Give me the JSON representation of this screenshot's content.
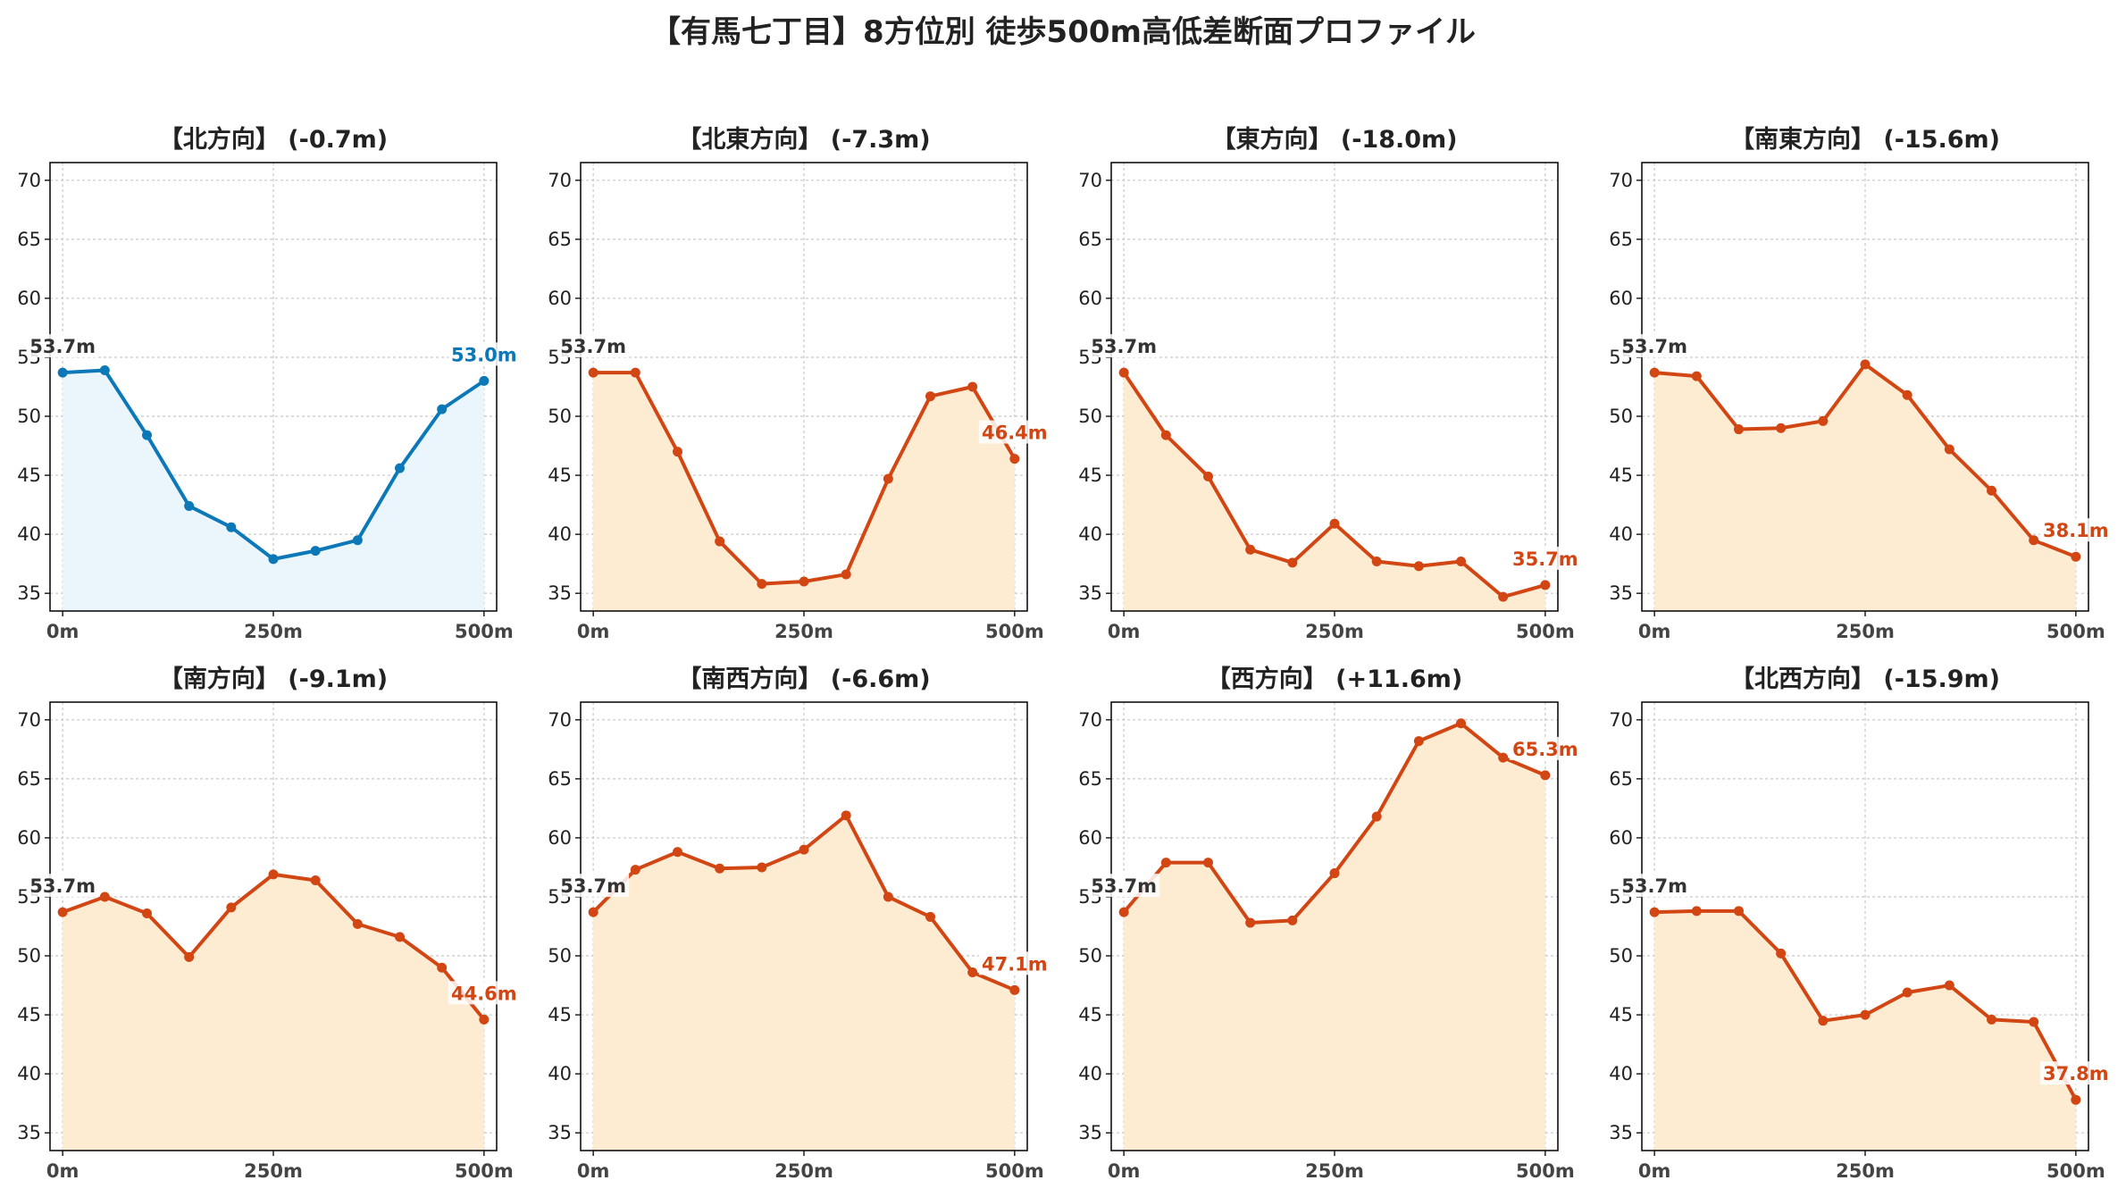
{
  "title": "【有馬七丁目】8方位別 徒歩500m高低差断面プロファイル",
  "colors": {
    "down_line": "#0c78b8",
    "down_fill": "#eaf6fc",
    "up_line": "#d24614",
    "up_fill": "#fdebd2",
    "grid": "#c8c8c8"
  },
  "chart_data": [
    {
      "type": "area",
      "title": "【北方向】 (-0.7m)",
      "style": "down",
      "x": [
        0,
        50,
        100,
        150,
        200,
        250,
        300,
        350,
        400,
        450,
        500
      ],
      "values": [
        53.7,
        53.9,
        48.4,
        42.4,
        40.6,
        37.9,
        38.6,
        39.5,
        45.6,
        50.6,
        53.0
      ],
      "start_label": "53.7m",
      "end_label": "53.0m",
      "xticks": [
        "0m",
        "250m",
        "500m"
      ],
      "yticks": [
        35,
        40,
        45,
        50,
        55,
        60,
        65,
        70
      ],
      "xlim": [
        -15,
        515
      ],
      "ylim": [
        33.5,
        71.5
      ],
      "grid": true
    },
    {
      "type": "area",
      "title": "【北東方向】 (-7.3m)",
      "style": "up",
      "x": [
        0,
        50,
        100,
        150,
        200,
        250,
        300,
        350,
        400,
        450,
        500
      ],
      "values": [
        53.7,
        53.7,
        47.0,
        39.4,
        35.8,
        36.0,
        36.6,
        44.7,
        51.7,
        52.5,
        46.4
      ],
      "start_label": "53.7m",
      "end_label": "46.4m",
      "xticks": [
        "0m",
        "250m",
        "500m"
      ],
      "yticks": [
        35,
        40,
        45,
        50,
        55,
        60,
        65,
        70
      ],
      "xlim": [
        -15,
        515
      ],
      "ylim": [
        33.5,
        71.5
      ],
      "grid": true
    },
    {
      "type": "area",
      "title": "【東方向】 (-18.0m)",
      "style": "up",
      "x": [
        0,
        50,
        100,
        150,
        200,
        250,
        300,
        350,
        400,
        450,
        500
      ],
      "values": [
        53.7,
        48.4,
        44.9,
        38.7,
        37.6,
        40.9,
        37.7,
        37.3,
        37.7,
        34.7,
        35.7
      ],
      "start_label": "53.7m",
      "end_label": "35.7m",
      "xticks": [
        "0m",
        "250m",
        "500m"
      ],
      "yticks": [
        35,
        40,
        45,
        50,
        55,
        60,
        65,
        70
      ],
      "xlim": [
        -15,
        515
      ],
      "ylim": [
        33.5,
        71.5
      ],
      "grid": true
    },
    {
      "type": "area",
      "title": "【南東方向】 (-15.6m)",
      "style": "up",
      "x": [
        0,
        50,
        100,
        150,
        200,
        250,
        300,
        350,
        400,
        450,
        500
      ],
      "values": [
        53.7,
        53.4,
        48.9,
        49.0,
        49.6,
        54.4,
        51.8,
        47.2,
        43.7,
        39.5,
        38.1
      ],
      "start_label": "53.7m",
      "end_label": "38.1m",
      "xticks": [
        "0m",
        "250m",
        "500m"
      ],
      "yticks": [
        35,
        40,
        45,
        50,
        55,
        60,
        65,
        70
      ],
      "xlim": [
        -15,
        515
      ],
      "ylim": [
        33.5,
        71.5
      ],
      "grid": true
    },
    {
      "type": "area",
      "title": "【南方向】 (-9.1m)",
      "style": "up",
      "x": [
        0,
        50,
        100,
        150,
        200,
        250,
        300,
        350,
        400,
        450,
        500
      ],
      "values": [
        53.7,
        55.0,
        53.6,
        49.9,
        54.1,
        56.9,
        56.4,
        52.7,
        51.6,
        49.0,
        44.6
      ],
      "start_label": "53.7m",
      "end_label": "44.6m",
      "xticks": [
        "0m",
        "250m",
        "500m"
      ],
      "yticks": [
        35,
        40,
        45,
        50,
        55,
        60,
        65,
        70
      ],
      "xlim": [
        -15,
        515
      ],
      "ylim": [
        33.5,
        71.5
      ],
      "grid": true
    },
    {
      "type": "area",
      "title": "【南西方向】 (-6.6m)",
      "style": "up",
      "x": [
        0,
        50,
        100,
        150,
        200,
        250,
        300,
        350,
        400,
        450,
        500
      ],
      "values": [
        53.7,
        57.3,
        58.8,
        57.4,
        57.5,
        59.0,
        61.9,
        55.0,
        53.3,
        48.6,
        47.1
      ],
      "start_label": "53.7m",
      "end_label": "47.1m",
      "xticks": [
        "0m",
        "250m",
        "500m"
      ],
      "yticks": [
        35,
        40,
        45,
        50,
        55,
        60,
        65,
        70
      ],
      "xlim": [
        -15,
        515
      ],
      "ylim": [
        33.5,
        71.5
      ],
      "grid": true
    },
    {
      "type": "area",
      "title": "【西方向】 (+11.6m)",
      "style": "up",
      "x": [
        0,
        50,
        100,
        150,
        200,
        250,
        300,
        350,
        400,
        450,
        500
      ],
      "values": [
        53.7,
        57.9,
        57.9,
        52.8,
        53.0,
        57.0,
        61.8,
        68.2,
        69.7,
        66.8,
        65.3
      ],
      "start_label": "53.7m",
      "end_label": "65.3m",
      "xticks": [
        "0m",
        "250m",
        "500m"
      ],
      "yticks": [
        35,
        40,
        45,
        50,
        55,
        60,
        65,
        70
      ],
      "xlim": [
        -15,
        515
      ],
      "ylim": [
        33.5,
        71.5
      ],
      "grid": true
    },
    {
      "type": "area",
      "title": "【北西方向】 (-15.9m)",
      "style": "up",
      "x": [
        0,
        50,
        100,
        150,
        200,
        250,
        300,
        350,
        400,
        450,
        500
      ],
      "values": [
        53.7,
        53.8,
        53.8,
        50.2,
        44.5,
        45.0,
        46.9,
        47.5,
        44.6,
        44.4,
        37.8
      ],
      "start_label": "53.7m",
      "end_label": "37.8m",
      "xticks": [
        "0m",
        "250m",
        "500m"
      ],
      "yticks": [
        35,
        40,
        45,
        50,
        55,
        60,
        65,
        70
      ],
      "xlim": [
        -15,
        515
      ],
      "ylim": [
        33.5,
        71.5
      ],
      "grid": true
    }
  ]
}
